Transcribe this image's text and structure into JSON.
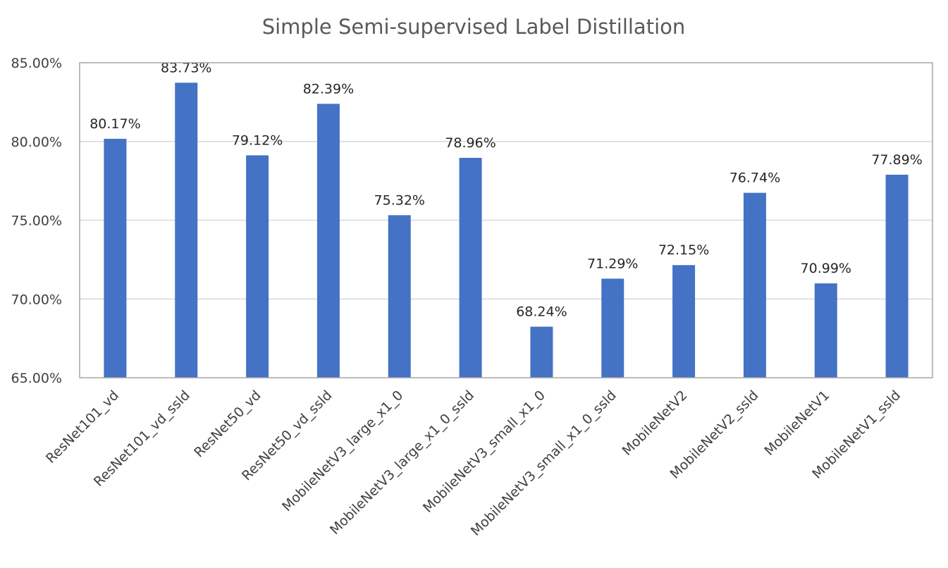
{
  "chart_data": {
    "type": "bar",
    "title": "Simple Semi-supervised Label Distillation",
    "xlabel": "",
    "ylabel": "",
    "categories": [
      "ResNet101_vd",
      "ResNet101_vd_ssld",
      "ResNet50_vd",
      "ResNet50_vd_ssld",
      "MobileNetV3_large_x1_0",
      "MobileNetV3_large_x1_0_ssld",
      "MobileNetV3_small_x1_0",
      "MobileNetV3_small_x1_0_ssld",
      "MobileNetV2",
      "MobileNetV2_ssld",
      "MobileNetV1",
      "MobileNetV1_ssld"
    ],
    "values": [
      80.17,
      83.73,
      79.12,
      82.39,
      75.32,
      78.96,
      68.24,
      71.29,
      72.15,
      76.74,
      70.99,
      77.89
    ],
    "data_labels": [
      "80.17%",
      "83.73%",
      "79.12%",
      "82.39%",
      "75.32%",
      "78.96%",
      "68.24%",
      "71.29%",
      "72.15%",
      "76.74%",
      "70.99%",
      "77.89%"
    ],
    "ylim": [
      65,
      85
    ],
    "yticks": [
      65,
      70,
      75,
      80,
      85
    ],
    "ytick_labels": [
      "65.00%",
      "70.00%",
      "75.00%",
      "80.00%",
      "85.00%"
    ],
    "grid": true,
    "legend": "none",
    "colors": {
      "bar": "#4472c4",
      "grid": "#d9d9d9",
      "frame": "#a6a6a6"
    }
  }
}
